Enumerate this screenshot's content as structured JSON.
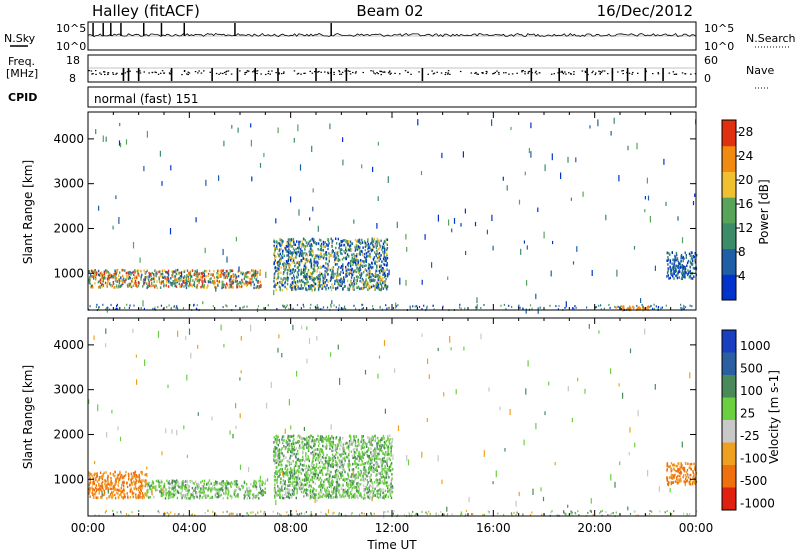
{
  "header": {
    "station": "Halley (fitACF)",
    "beam": "Beam 02",
    "date": "16/Dec/2012"
  },
  "noise_panel": {
    "left_label": "N.Sky",
    "right_label": "N.Search",
    "left_ticks": [
      "10^5",
      "10^0"
    ],
    "right_ticks": [
      "10^5",
      "10^0"
    ]
  },
  "freq_panel": {
    "left_label_1": "Freq.",
    "left_label_2": "[MHz]",
    "right_label": "Nave",
    "left_ticks": [
      "18",
      "8"
    ],
    "right_ticks": [
      "60",
      "0"
    ]
  },
  "cpid": {
    "label": "CPID",
    "value": "normal (fast) 151"
  },
  "chart_data": [
    {
      "type": "heatmap",
      "name": "power",
      "ylabel": "Slant Range [km]",
      "xlabel": "",
      "y_ticks": [
        "4000",
        "3000",
        "2000",
        "1000"
      ],
      "y_tick_values": [
        4000,
        3000,
        2000,
        1000
      ],
      "ylim": [
        180,
        4600
      ],
      "xlim_hours": [
        0,
        24
      ],
      "colorbar": {
        "label": "Power [dB]",
        "ticks": [
          "28",
          "24",
          "20",
          "16",
          "12",
          "8",
          "4"
        ],
        "tick_values": [
          28,
          24,
          20,
          16,
          12,
          8,
          4
        ],
        "range": [
          0,
          30
        ],
        "colors": [
          "#0033cc",
          "#1f5fa8",
          "#3c8c6a",
          "#58a55a",
          "#f0c030",
          "#f08a10",
          "#e03010"
        ]
      },
      "features": [
        {
          "t_start": 0.0,
          "t_end": 6.8,
          "r_min": 700,
          "r_max": 1100,
          "level": "mixed high"
        },
        {
          "t_start": 7.3,
          "t_end": 11.8,
          "r_min": 650,
          "r_max": 1800,
          "level": "mixed"
        },
        {
          "t_start": 22.8,
          "t_end": 24.0,
          "r_min": 900,
          "r_max": 1500,
          "level": "low-mid"
        },
        {
          "t_start": 20.8,
          "t_end": 22.2,
          "r_min": 200,
          "r_max": 300,
          "level": "orange"
        }
      ]
    },
    {
      "type": "heatmap",
      "name": "velocity",
      "ylabel": "Slant Range [km]",
      "xlabel": "Time UT",
      "x_ticks": [
        "00:00",
        "04:00",
        "08:00",
        "12:00",
        "16:00",
        "20:00",
        "00:00"
      ],
      "x_tick_hours": [
        0,
        4,
        8,
        12,
        16,
        20,
        24
      ],
      "y_ticks": [
        "4000",
        "3000",
        "2000",
        "1000"
      ],
      "y_tick_values": [
        4000,
        3000,
        2000,
        1000
      ],
      "ylim": [
        180,
        4600
      ],
      "xlim_hours": [
        0,
        24
      ],
      "colorbar": {
        "label": "Velocity [m s-1]",
        "ticks": [
          "1000",
          "500",
          "100",
          "25",
          "-25",
          "-100",
          "-500",
          "-1000"
        ],
        "colors": [
          "#1a3fc0",
          "#2a5fa0",
          "#4a8a5a",
          "#6ad040",
          "#c8c8c8",
          "#f0a020",
          "#f07010",
          "#e02010"
        ]
      },
      "features": [
        {
          "t_start": 0.0,
          "t_end": 2.3,
          "r_min": 600,
          "r_max": 1200,
          "level": "orange"
        },
        {
          "t_start": 2.3,
          "t_end": 7.0,
          "r_min": 600,
          "r_max": 1000,
          "level": "green"
        },
        {
          "t_start": 7.3,
          "t_end": 12.0,
          "r_min": 600,
          "r_max": 2000,
          "level": "green"
        },
        {
          "t_start": 22.8,
          "t_end": 24.0,
          "r_min": 900,
          "r_max": 1400,
          "level": "orange"
        }
      ]
    }
  ]
}
